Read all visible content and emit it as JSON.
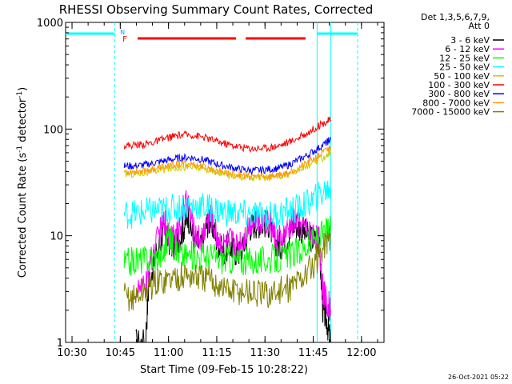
{
  "chart_data": {
    "type": "line",
    "title": "RHESSI Observing Summary Count Rates, Corrected",
    "xlabel": "Start Time (09-Feb-15 10:28:22)",
    "ylabel": "Corrected Count Rate (s-1 detector-1)",
    "ylabel_parts": {
      "base": "Corrected Count Rate (s",
      "sup1": "-1",
      "mid": " detector",
      "sup2": "-1",
      "end": ")"
    },
    "xlim": [
      10.4667,
      12.1167
    ],
    "ylim": [
      1,
      1000
    ],
    "yscale": "log",
    "x_tick_labels": [
      "10:30",
      "10:45",
      "11:00",
      "11:15",
      "11:30",
      "11:45",
      "12:00"
    ],
    "x_ticks": [
      10.5,
      10.75,
      11.0,
      11.25,
      11.5,
      11.75,
      12.0
    ],
    "y_tick_labels": [
      "1",
      "10",
      "100",
      "1000"
    ],
    "y_ticks": [
      1,
      10,
      100,
      1000
    ],
    "legend_header": [
      "Det 1,3,5,6,7,9,",
      "Att 0"
    ],
    "legend_position": "right",
    "series": [
      {
        "name": "3 - 6 keV",
        "color": "#000000",
        "x": [
          10.83,
          10.88,
          10.9,
          10.95,
          10.98,
          11.0,
          11.03,
          11.05,
          11.08,
          11.1,
          11.13,
          11.17,
          11.2,
          11.22,
          11.25,
          11.28,
          11.32,
          11.35,
          11.38,
          11.42,
          11.45,
          11.48,
          11.52,
          11.55,
          11.58,
          11.62,
          11.65,
          11.68,
          11.72,
          11.76,
          11.78,
          11.8,
          11.82,
          11.84
        ],
        "y": [
          1,
          1,
          4,
          8,
          11,
          9,
          8,
          9,
          12,
          16,
          9,
          8,
          13,
          14,
          9,
          7,
          8,
          7,
          7,
          12,
          13,
          13,
          13,
          9,
          8,
          10,
          13,
          12,
          10,
          9,
          9,
          2,
          1.6,
          1
        ]
      },
      {
        "name": "6 - 12 keV",
        "color": "#ff00ff",
        "x": [
          10.83,
          10.88,
          10.9,
          10.95,
          10.98,
          11.0,
          11.03,
          11.05,
          11.08,
          11.1,
          11.13,
          11.17,
          11.2,
          11.22,
          11.25,
          11.28,
          11.32,
          11.35,
          11.38,
          11.42,
          11.45,
          11.48,
          11.52,
          11.55,
          11.58,
          11.62,
          11.65,
          11.68,
          11.72,
          11.76,
          11.78,
          11.8,
          11.82,
          11.84
        ],
        "y": [
          3,
          3.2,
          5,
          10,
          14,
          11,
          9,
          11,
          19,
          20,
          11,
          9,
          14,
          15,
          10,
          8,
          9,
          8,
          9,
          13,
          14,
          14,
          14,
          10,
          9,
          11,
          14,
          13,
          11,
          10,
          9,
          3,
          2.5,
          2
        ]
      },
      {
        "name": "12 - 25 keV",
        "color": "#00ff00",
        "x": [
          10.77,
          10.82,
          10.87,
          10.92,
          10.97,
          11.0,
          11.03,
          11.07,
          11.12,
          11.17,
          11.22,
          11.27,
          11.32,
          11.37,
          11.42,
          11.47,
          11.52,
          11.57,
          11.62,
          11.67,
          11.72,
          11.77,
          11.82,
          11.84
        ],
        "y": [
          5.5,
          5.8,
          6,
          6.2,
          6.5,
          10,
          8,
          6.5,
          6.5,
          6.5,
          6.5,
          6,
          6,
          5.8,
          5.8,
          5.8,
          6,
          6,
          6.5,
          7,
          8,
          9.5,
          11,
          11
        ]
      },
      {
        "name": "25 - 50 keV",
        "color": "#00ffff",
        "x": [
          10.77,
          10.82,
          10.87,
          10.92,
          10.97,
          11.02,
          11.07,
          11.12,
          11.17,
          11.22,
          11.27,
          11.32,
          11.37,
          11.42,
          11.47,
          11.52,
          11.57,
          11.62,
          11.67,
          11.72,
          11.77,
          11.82,
          11.84
        ],
        "y": [
          16,
          16,
          16.5,
          17,
          17.5,
          18,
          18.5,
          19,
          19,
          18,
          17,
          16.5,
          16,
          15.5,
          15.5,
          15.5,
          16,
          17,
          18,
          20,
          23,
          27,
          29
        ]
      },
      {
        "name": "50 - 100 keV",
        "color": "#cccc00",
        "x": [
          10.77,
          10.82,
          10.87,
          10.92,
          10.97,
          11.02,
          11.07,
          11.12,
          11.17,
          11.22,
          11.27,
          11.32,
          11.37,
          11.42,
          11.47,
          11.52,
          11.57,
          11.62,
          11.67,
          11.72,
          11.77,
          11.82,
          11.84
        ],
        "y": [
          38,
          38,
          39,
          40,
          42,
          43,
          44,
          44,
          43,
          41,
          39,
          37,
          36,
          35,
          35,
          35,
          36,
          38,
          41,
          45,
          50,
          57,
          60
        ]
      },
      {
        "name": "100 - 300 keV",
        "color": "#ff0000",
        "x": [
          10.77,
          10.82,
          10.87,
          10.92,
          10.97,
          11.02,
          11.07,
          11.12,
          11.17,
          11.22,
          11.27,
          11.32,
          11.37,
          11.42,
          11.47,
          11.52,
          11.57,
          11.62,
          11.67,
          11.72,
          11.77,
          11.82,
          11.84
        ],
        "y": [
          70,
          71,
          72,
          75,
          80,
          85,
          88,
          88,
          85,
          80,
          75,
          71,
          68,
          66,
          66,
          67,
          70,
          75,
          82,
          92,
          105,
          118,
          122
        ]
      },
      {
        "name": "300 - 800 keV",
        "color": "#0000ff",
        "x": [
          10.77,
          10.82,
          10.87,
          10.92,
          10.97,
          11.02,
          11.07,
          11.12,
          11.17,
          11.22,
          11.27,
          11.32,
          11.37,
          11.42,
          11.47,
          11.52,
          11.57,
          11.62,
          11.67,
          11.72,
          11.77,
          11.82,
          11.84
        ],
        "y": [
          45,
          45,
          46,
          48,
          50,
          52,
          54,
          54,
          52,
          49,
          46,
          44,
          42,
          41,
          41,
          42,
          43,
          46,
          51,
          57,
          65,
          75,
          80
        ]
      },
      {
        "name": "800 - 7000 keV",
        "color": "#ff9900",
        "x": [
          10.77,
          10.82,
          10.87,
          10.92,
          10.97,
          11.02,
          11.07,
          11.12,
          11.17,
          11.22,
          11.27,
          11.32,
          11.37,
          11.42,
          11.47,
          11.52,
          11.57,
          11.62,
          11.67,
          11.72,
          11.77,
          11.82,
          11.84
        ],
        "y": [
          40,
          40,
          41,
          42,
          44,
          46,
          47,
          47,
          45,
          42,
          40,
          38,
          37,
          36,
          36,
          36,
          37,
          39,
          43,
          48,
          55,
          63,
          68
        ]
      },
      {
        "name": "7000 - 15000 keV",
        "color": "#808000",
        "x": [
          10.77,
          10.82,
          10.87,
          10.92,
          10.97,
          11.02,
          11.07,
          11.12,
          11.17,
          11.22,
          11.27,
          11.32,
          11.37,
          11.42,
          11.47,
          11.52,
          11.57,
          11.62,
          11.67,
          11.72,
          11.77,
          11.82,
          11.84
        ],
        "y": [
          2.7,
          2.6,
          3,
          3.5,
          3.8,
          4,
          4.2,
          4.2,
          4,
          3.8,
          3.4,
          3,
          3,
          3,
          2.8,
          2.8,
          3,
          3.2,
          3.8,
          4.5,
          6,
          9,
          10
        ]
      }
    ],
    "flags": {
      "saa_color": "#00ffff",
      "night_color": "#ff0000",
      "saa_label": "N",
      "night_label": "F",
      "saa_bars": [
        [
          10.4667,
          10.72
        ],
        [
          11.77,
          11.98
        ]
      ],
      "night_bars": [
        [
          10.84,
          11.35
        ],
        [
          11.4,
          11.71
        ]
      ],
      "saa_lines": [
        10.72,
        11.98
      ],
      "night_lines": [
        11.77,
        11.84
      ]
    },
    "footer_date": "26-Oct-2021 05:22"
  }
}
